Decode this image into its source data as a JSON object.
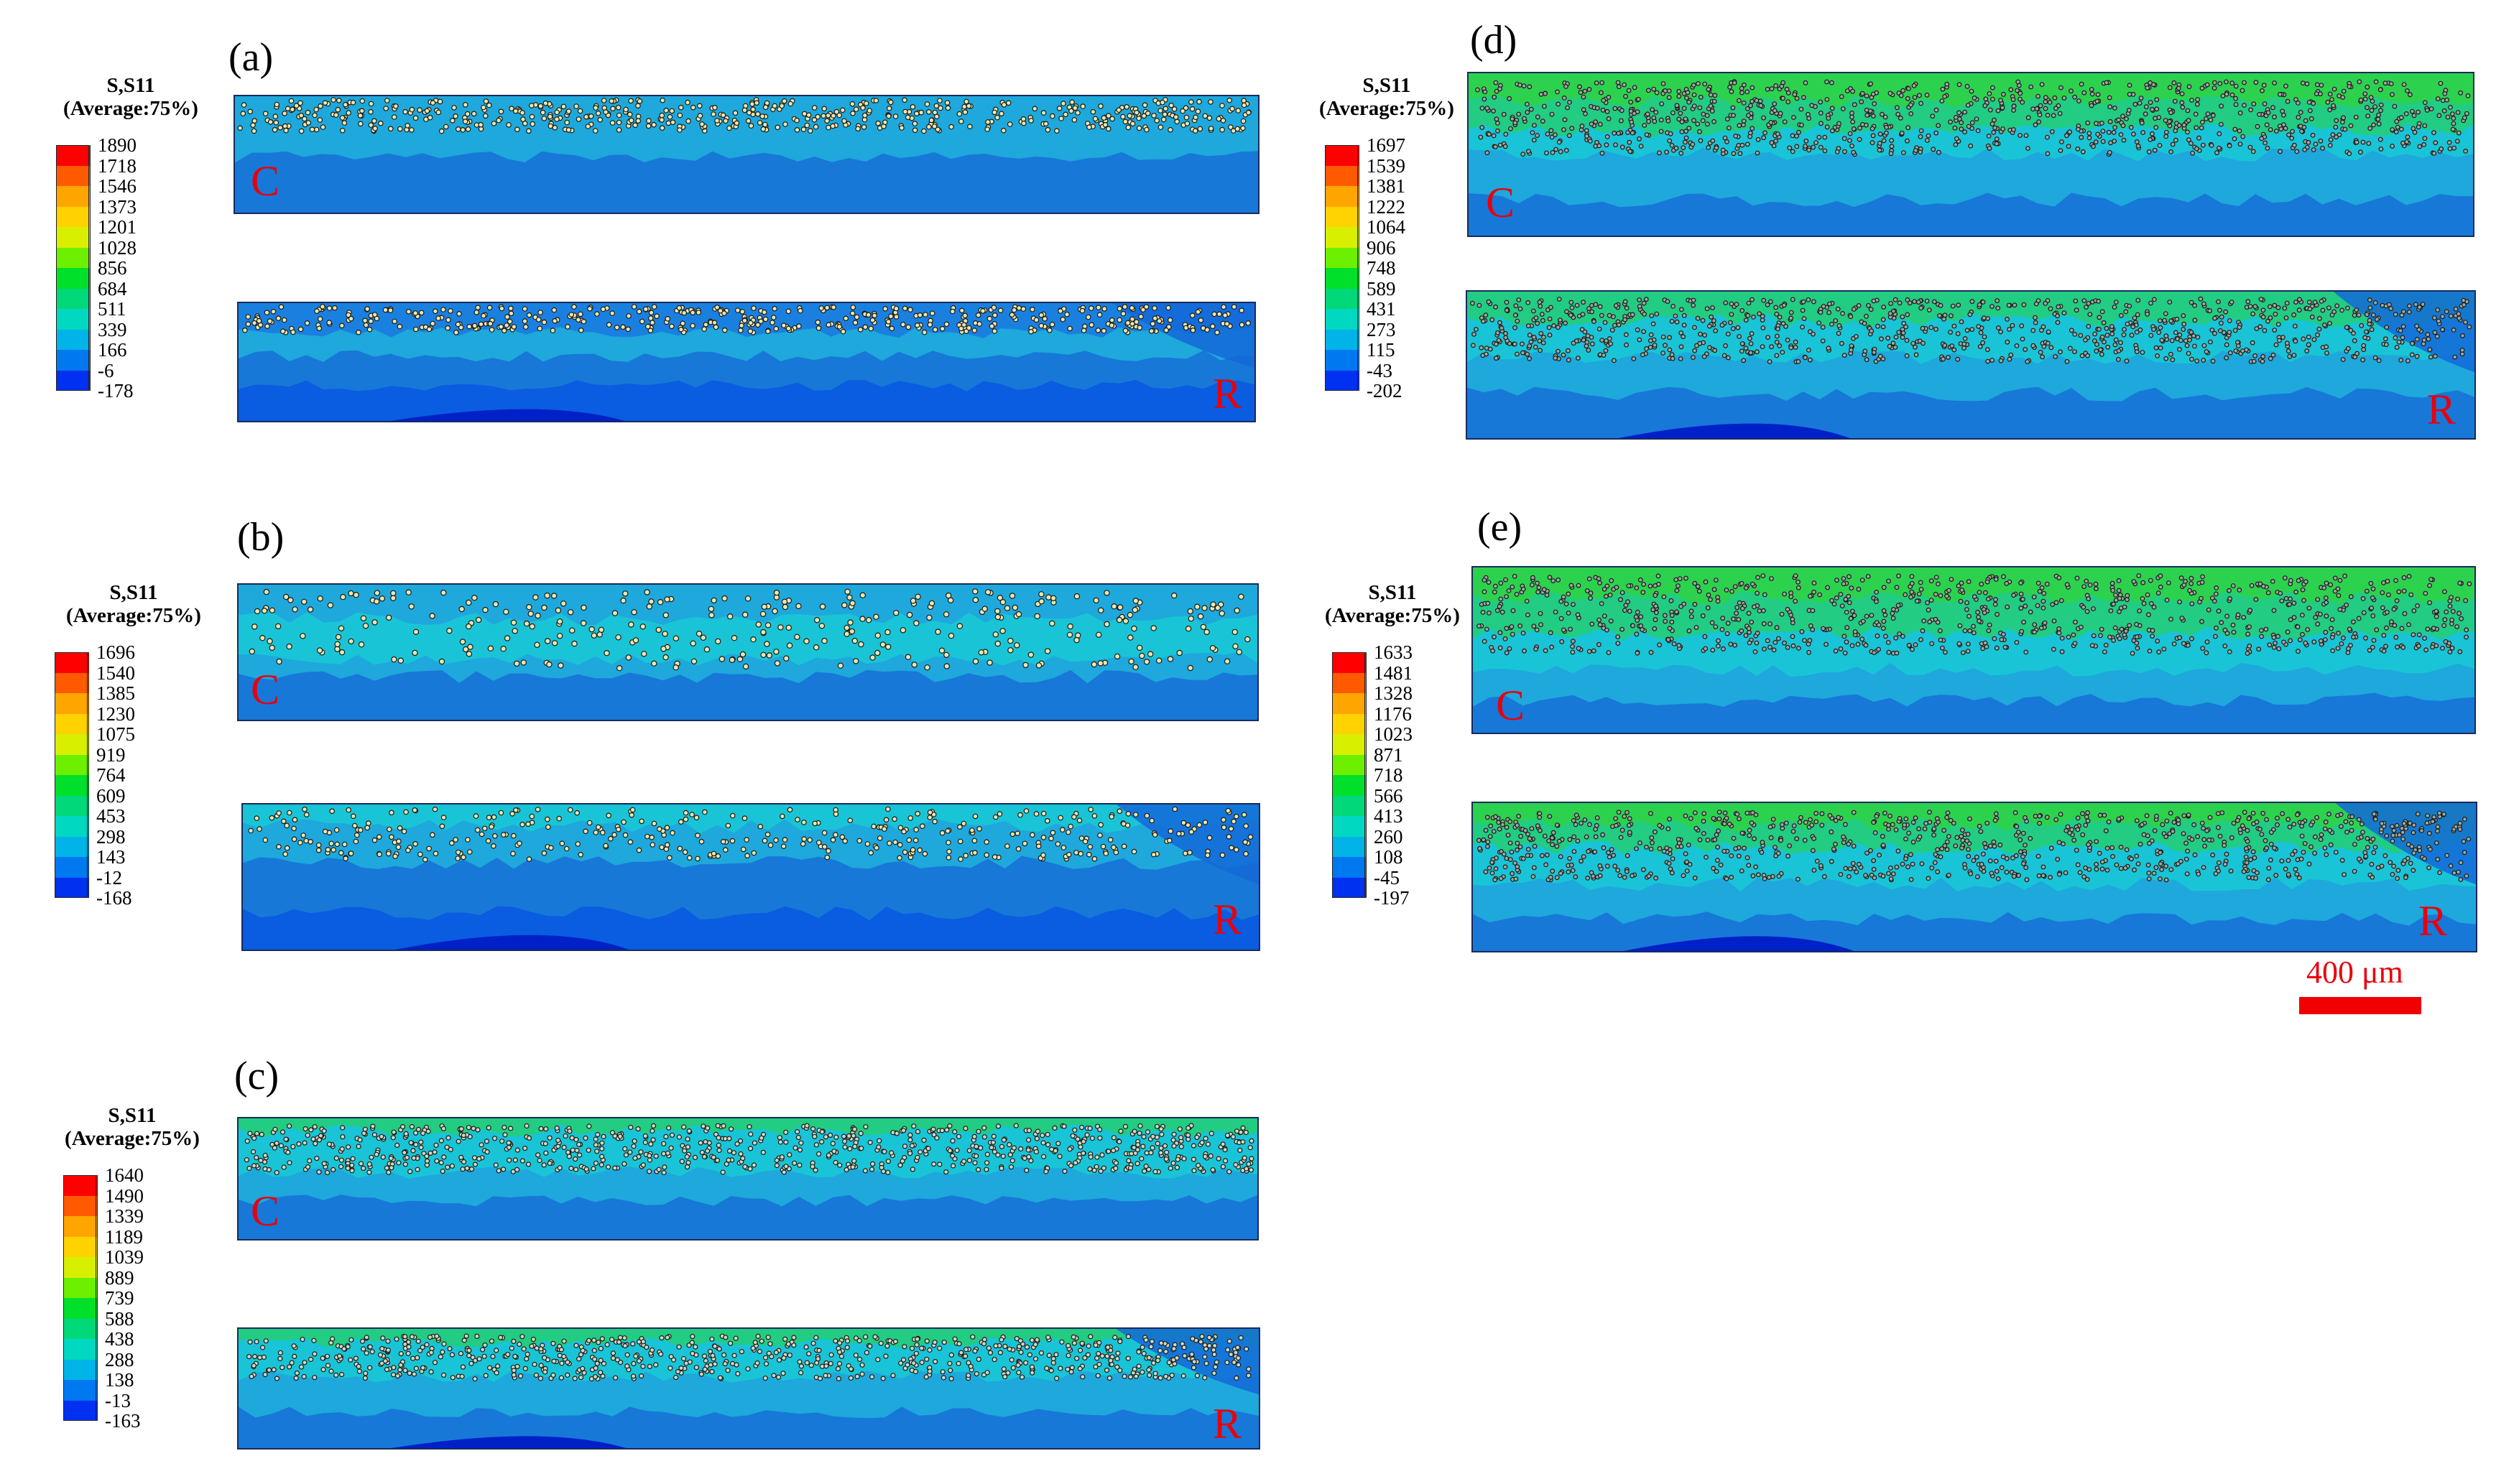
{
  "legend_title_line1": "S,S11",
  "legend_title_line2": "(Average:75%)",
  "colors": [
    "#ff0000",
    "#ff5a00",
    "#ffa500",
    "#ffd200",
    "#d8f000",
    "#6cf000",
    "#00e02a",
    "#00d87a",
    "#00d8c2",
    "#00b4e8",
    "#0078f0",
    "#0030f0",
    "#0000c8"
  ],
  "panels": [
    {
      "label": "(a)",
      "legend_values": [
        "1890",
        "1718",
        "1546",
        "1373",
        "1201",
        "1028",
        "856",
        "684",
        "511",
        "339",
        "166",
        "-6",
        "-178"
      ],
      "marks": {
        "top": "C",
        "bottom": "R"
      }
    },
    {
      "label": "(b)",
      "legend_values": [
        "1696",
        "1540",
        "1385",
        "1230",
        "1075",
        "919",
        "764",
        "609",
        "453",
        "298",
        "143",
        "-12",
        "-168"
      ],
      "marks": {
        "top": "C",
        "bottom": "R"
      }
    },
    {
      "label": "(c)",
      "legend_values": [
        "1640",
        "1490",
        "1339",
        "1189",
        "1039",
        "889",
        "739",
        "588",
        "438",
        "288",
        "138",
        "-13",
        "-163"
      ],
      "marks": {
        "top": "C",
        "bottom": "R"
      }
    },
    {
      "label": "(d)",
      "legend_values": [
        "1697",
        "1539",
        "1381",
        "1222",
        "1064",
        "906",
        "748",
        "589",
        "431",
        "273",
        "115",
        "-43",
        "-202"
      ],
      "marks": {
        "top": "C",
        "bottom": "R"
      }
    },
    {
      "label": "(e)",
      "legend_values": [
        "1633",
        "1481",
        "1328",
        "1176",
        "1023",
        "871",
        "718",
        "566",
        "413",
        "260",
        "108",
        "-45",
        "-197"
      ],
      "marks": {
        "top": "C",
        "bottom": "R"
      }
    }
  ],
  "scale_bar": {
    "label": "400 μm"
  }
}
